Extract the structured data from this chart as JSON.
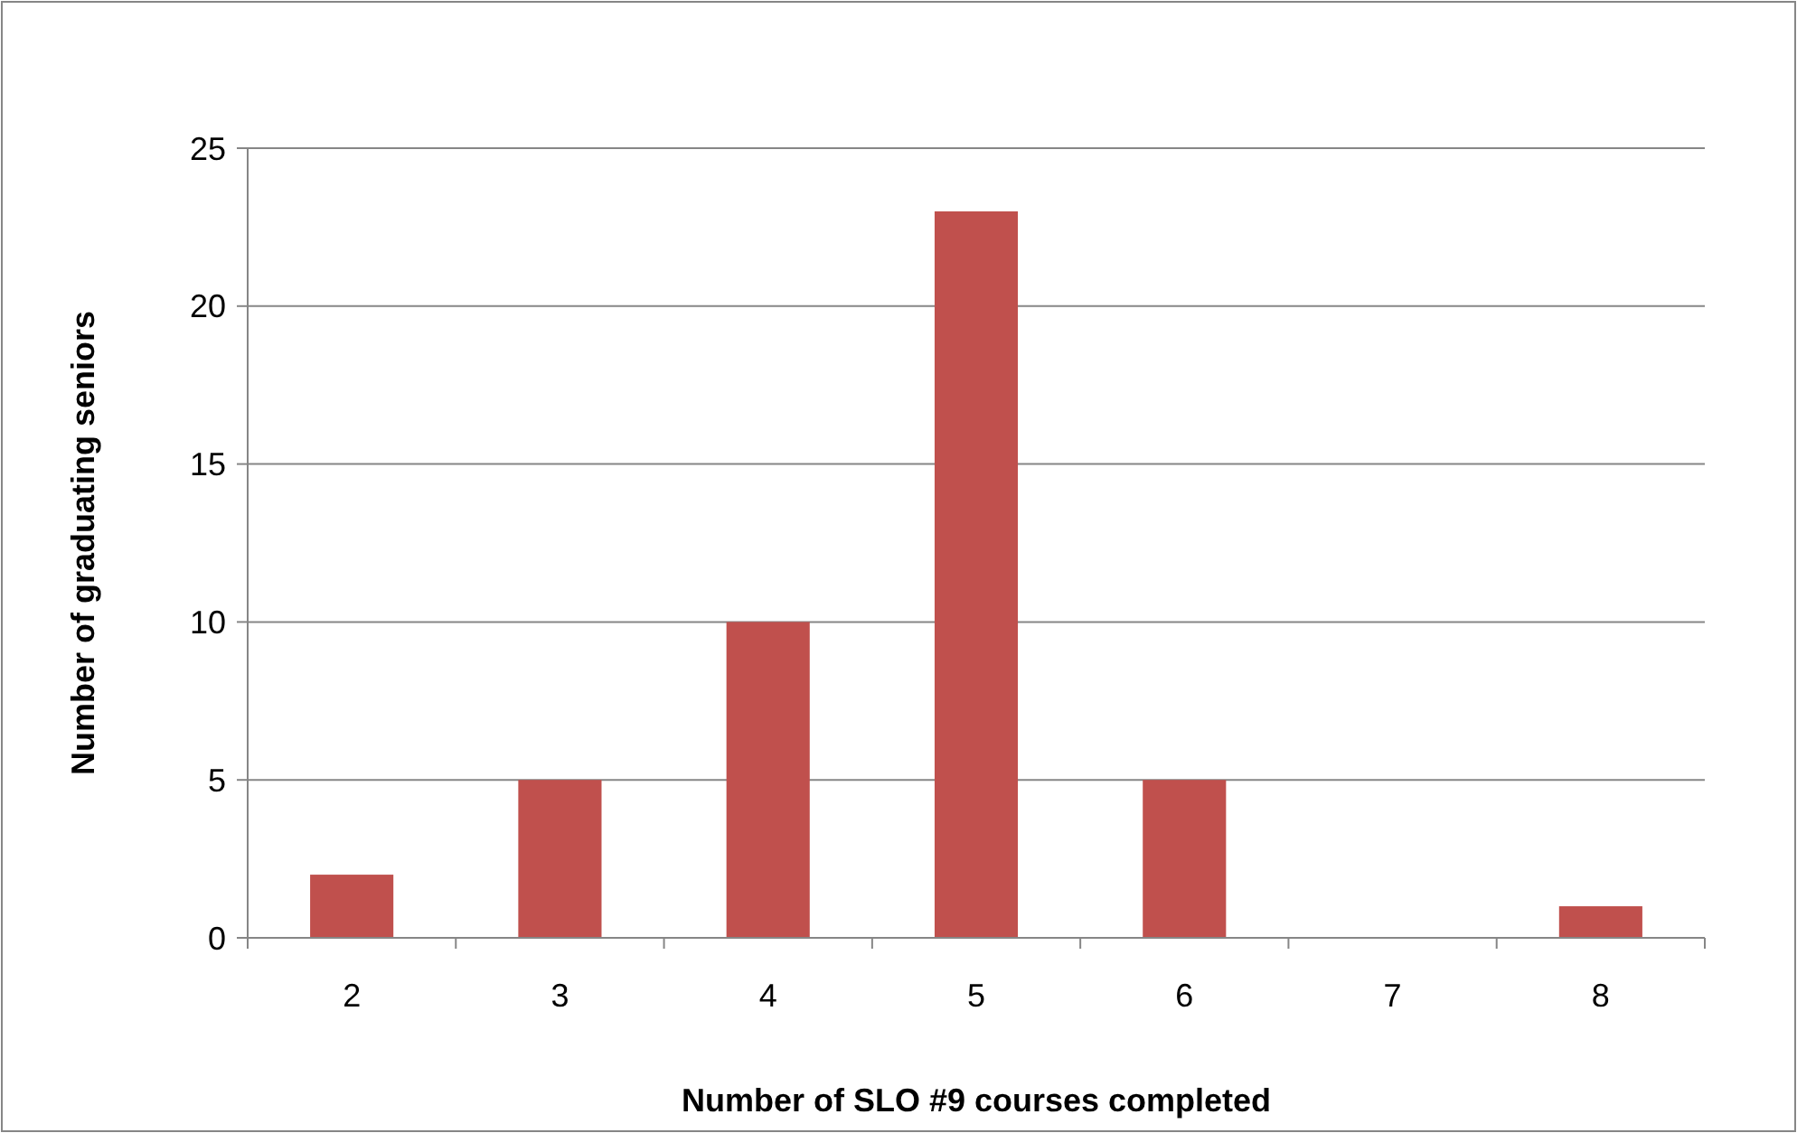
{
  "chart_data": {
    "type": "bar",
    "xlabel": "Number of SLO #9 courses completed",
    "ylabel": "Number of graduating seniors",
    "categories": [
      "2",
      "3",
      "4",
      "5",
      "6",
      "7",
      "8"
    ],
    "values": [
      2,
      5,
      10,
      23,
      5,
      0,
      1
    ],
    "color": "#c0504d",
    "ylim": [
      0,
      25
    ],
    "yticks": [
      0,
      5,
      10,
      15,
      20,
      25
    ],
    "grid": "y"
  }
}
